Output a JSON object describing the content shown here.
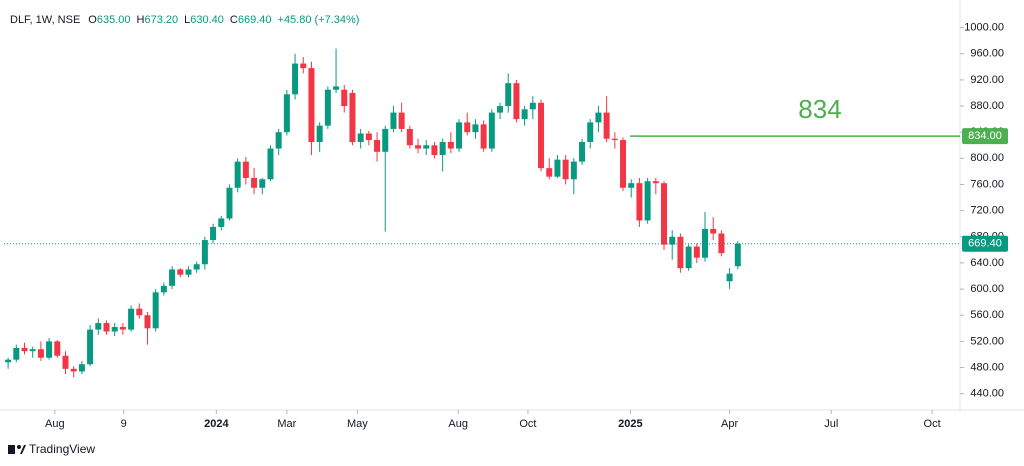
{
  "header": {
    "symbol": "DLF, 1W, NSE",
    "ohlc": [
      {
        "label": "O",
        "value": "635.00"
      },
      {
        "label": "H",
        "value": "673.20"
      },
      {
        "label": "L",
        "value": "630.40"
      },
      {
        "label": "C",
        "value": "669.40"
      }
    ],
    "change": "+45.80 (+7.34%)"
  },
  "footer": "TradingView",
  "chart_data": {
    "type": "candlestick",
    "up_color": "#089981",
    "down_color": "#f23645",
    "categories": [
      null,
      null,
      null,
      null,
      null,
      null,
      null,
      null,
      null,
      null,
      null,
      null,
      null,
      null,
      null,
      null,
      null,
      null,
      null,
      null,
      null,
      null,
      null,
      null,
      null,
      null,
      null,
      null,
      null,
      null,
      null,
      null,
      null,
      null,
      null,
      null,
      null,
      null,
      null,
      null,
      null,
      null,
      null,
      null,
      null,
      null,
      null,
      null,
      null,
      null,
      null,
      null,
      null,
      null,
      null,
      null,
      null,
      null,
      null,
      null,
      null,
      null,
      null,
      null,
      null,
      null,
      null,
      null,
      null,
      null,
      null,
      null,
      null,
      null,
      null,
      null,
      null,
      null,
      null,
      null,
      null,
      null,
      null,
      null,
      null,
      null,
      null,
      null,
      null,
      null
    ],
    "open": [
      488,
      492,
      510,
      505,
      508,
      495,
      520,
      498,
      478,
      474,
      485,
      538,
      548,
      535,
      542,
      538,
      570,
      560,
      540,
      595,
      605,
      630,
      622,
      630,
      638,
      675,
      695,
      708,
      755,
      795,
      770,
      755,
      768,
      815,
      840,
      898,
      945,
      938,
      825,
      850,
      905,
      905,
      900,
      825,
      838,
      828,
      810,
      845,
      870,
      845,
      820,
      815,
      820,
      805,
      825,
      815,
      855,
      840,
      852,
      815,
      870,
      880,
      915,
      860,
      875,
      885,
      785,
      772,
      798,
      768,
      795,
      825,
      855,
      870,
      830,
      828,
      755,
      762,
      705,
      765,
      762,
      668,
      680,
      632,
      665,
      648,
      692,
      685,
      612,
      635
    ],
    "high": [
      495,
      515,
      518,
      512,
      520,
      525,
      522,
      505,
      482,
      490,
      545,
      555,
      552,
      548,
      548,
      575,
      578,
      565,
      600,
      610,
      635,
      632,
      635,
      642,
      680,
      700,
      712,
      760,
      800,
      802,
      785,
      770,
      820,
      845,
      905,
      960,
      955,
      948,
      855,
      910,
      968,
      912,
      905,
      845,
      842,
      840,
      850,
      880,
      885,
      850,
      830,
      828,
      825,
      830,
      840,
      860,
      870,
      860,
      858,
      875,
      885,
      930,
      920,
      880,
      895,
      890,
      800,
      805,
      805,
      800,
      830,
      860,
      880,
      895,
      840,
      832,
      768,
      770,
      770,
      770,
      765,
      690,
      685,
      668,
      670,
      718,
      710,
      690,
      632,
      673.2
    ],
    "low": [
      478,
      488,
      500,
      495,
      490,
      492,
      495,
      470,
      465,
      470,
      482,
      530,
      530,
      528,
      530,
      535,
      555,
      515,
      535,
      590,
      600,
      618,
      618,
      625,
      630,
      670,
      690,
      705,
      748,
      760,
      745,
      745,
      765,
      805,
      835,
      890,
      930,
      805,
      810,
      845,
      900,
      870,
      820,
      815,
      820,
      795,
      688,
      840,
      840,
      815,
      808,
      805,
      800,
      780,
      808,
      810,
      835,
      830,
      810,
      810,
      860,
      870,
      855,
      850,
      860,
      780,
      768,
      770,
      760,
      745,
      790,
      815,
      840,
      825,
      815,
      750,
      740,
      695,
      700,
      745,
      660,
      645,
      625,
      628,
      640,
      642,
      675,
      650,
      600,
      630.4
    ],
    "close": [
      492,
      510,
      505,
      508,
      495,
      520,
      498,
      478,
      474,
      485,
      538,
      548,
      535,
      542,
      538,
      570,
      560,
      540,
      595,
      605,
      630,
      622,
      630,
      638,
      675,
      695,
      708,
      755,
      795,
      770,
      755,
      768,
      815,
      840,
      898,
      945,
      938,
      825,
      850,
      905,
      910,
      880,
      825,
      838,
      828,
      810,
      845,
      870,
      845,
      820,
      815,
      820,
      805,
      825,
      815,
      855,
      840,
      852,
      815,
      870,
      880,
      915,
      860,
      875,
      885,
      785,
      772,
      798,
      768,
      795,
      825,
      855,
      870,
      830,
      828,
      755,
      762,
      705,
      765,
      762,
      668,
      680,
      632,
      665,
      648,
      692,
      685,
      655,
      623.6,
      669.4
    ],
    "xlim": [
      -0.5,
      116.1
    ],
    "xticks": [
      {
        "value": 5.7,
        "label": "Aug"
      },
      {
        "value": 14.1,
        "label": "9"
      },
      {
        "value": 25.4,
        "label": "2024",
        "bold": true
      },
      {
        "value": 34.0,
        "label": "Mar"
      },
      {
        "value": 42.6,
        "label": "May"
      },
      {
        "value": 54.9,
        "label": "Aug"
      },
      {
        "value": 63.4,
        "label": "Oct"
      },
      {
        "value": 75.9,
        "label": "2025",
        "bold": true
      },
      {
        "value": 88.0,
        "label": "Apr"
      },
      {
        "value": 100.4,
        "label": "Jul"
      },
      {
        "value": 112.7,
        "label": "Oct"
      }
    ],
    "ylim": [
      415,
      1030
    ],
    "yticks": [
      {
        "value": 440,
        "label": "440.00"
      },
      {
        "value": 480,
        "label": "480.00"
      },
      {
        "value": 520,
        "label": "520.00"
      },
      {
        "value": 560,
        "label": "560.00"
      },
      {
        "value": 600,
        "label": "600.00"
      },
      {
        "value": 640,
        "label": "640.00"
      },
      {
        "value": 680,
        "label": "680.00"
      },
      {
        "value": 720,
        "label": "720.00"
      },
      {
        "value": 760,
        "label": "760.00"
      },
      {
        "value": 800,
        "label": "800.00"
      },
      {
        "value": 840,
        "label": "840.00"
      },
      {
        "value": 880,
        "label": "880.00"
      },
      {
        "value": 920,
        "label": "920.00"
      },
      {
        "value": 960,
        "label": "960.00"
      },
      {
        "value": 1000,
        "label": "1000.00"
      }
    ],
    "last_price": {
      "value": 669.4,
      "label": "669.40",
      "color": "#089981"
    },
    "level": {
      "value": 834,
      "label": "834",
      "axis_label": "834.00",
      "color": "#4caf50"
    }
  }
}
